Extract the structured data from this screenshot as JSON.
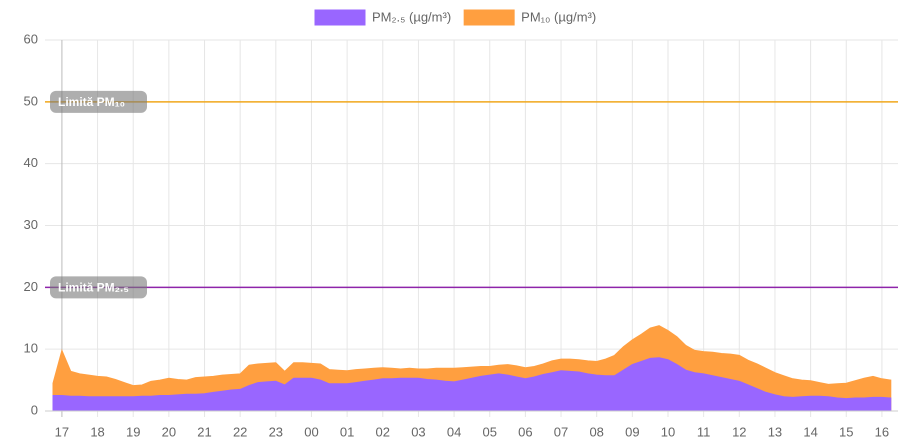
{
  "chart_data": {
    "type": "area",
    "categories": [
      null,
      "17",
      null,
      null,
      null,
      "18",
      null,
      null,
      null,
      "19",
      null,
      null,
      null,
      "20",
      null,
      null,
      null,
      "21",
      null,
      null,
      null,
      "22",
      null,
      null,
      null,
      "23",
      null,
      null,
      null,
      "00",
      null,
      null,
      null,
      "01",
      null,
      null,
      null,
      "02",
      null,
      null,
      null,
      "03",
      null,
      null,
      null,
      "04",
      null,
      null,
      null,
      "05",
      null,
      null,
      null,
      "06",
      null,
      null,
      null,
      "07",
      null,
      null,
      null,
      "08",
      null,
      null,
      null,
      "09",
      null,
      null,
      null,
      "10",
      null,
      null,
      null,
      "11",
      null,
      null,
      null,
      "12",
      null,
      null,
      null,
      "13",
      null,
      null,
      null,
      "14",
      null,
      null,
      null,
      "15",
      null,
      null,
      null,
      "16",
      null
    ],
    "series": [
      {
        "name": "PM₂.₅ (µg/m³)",
        "color": "#9966ff",
        "values": [
          2.5,
          2.5,
          2.4,
          2.4,
          2.3,
          2.3,
          2.3,
          2.3,
          2.3,
          2.3,
          2.4,
          2.4,
          2.5,
          2.5,
          2.6,
          2.7,
          2.7,
          2.8,
          3.0,
          3.2,
          3.4,
          3.5,
          4.1,
          4.6,
          4.7,
          4.8,
          4.2,
          5.3,
          5.3,
          5.3,
          5.0,
          4.4,
          4.4,
          4.4,
          4.6,
          4.8,
          5.0,
          5.2,
          5.2,
          5.3,
          5.3,
          5.3,
          5.1,
          5.0,
          4.8,
          4.7,
          5.0,
          5.3,
          5.6,
          5.8,
          6.0,
          5.8,
          5.5,
          5.2,
          5.5,
          5.9,
          6.2,
          6.5,
          6.4,
          6.3,
          6.0,
          5.8,
          5.7,
          5.7,
          6.6,
          7.5,
          8.0,
          8.5,
          8.6,
          8.3,
          7.5,
          6.6,
          6.2,
          6.0,
          5.7,
          5.4,
          5.1,
          4.8,
          4.2,
          3.6,
          3.0,
          2.6,
          2.3,
          2.2,
          2.3,
          2.4,
          2.4,
          2.3,
          2.1,
          2.0,
          2.1,
          2.1,
          2.2,
          2.2,
          2.1
        ]
      },
      {
        "name": "PM₁₀ (µg/m³)",
        "color": "#ff9f40",
        "values": [
          4.5,
          9.8,
          6.4,
          6.0,
          5.8,
          5.6,
          5.5,
          5.1,
          4.6,
          4.1,
          4.2,
          4.8,
          5.0,
          5.3,
          5.1,
          5.0,
          5.4,
          5.5,
          5.6,
          5.8,
          5.9,
          6.0,
          7.4,
          7.6,
          7.7,
          7.8,
          6.4,
          7.8,
          7.8,
          7.7,
          7.6,
          6.7,
          6.6,
          6.5,
          6.7,
          6.8,
          6.9,
          7.0,
          6.9,
          6.8,
          6.9,
          6.8,
          6.8,
          6.9,
          6.9,
          6.9,
          7.0,
          7.1,
          7.2,
          7.2,
          7.4,
          7.5,
          7.3,
          7.0,
          7.2,
          7.6,
          8.1,
          8.4,
          8.4,
          8.3,
          8.1,
          8.0,
          8.4,
          9.0,
          10.4,
          11.5,
          12.4,
          13.4,
          13.8,
          13.0,
          12.0,
          10.6,
          9.8,
          9.6,
          9.5,
          9.3,
          9.2,
          9.0,
          8.2,
          7.6,
          6.9,
          6.2,
          5.7,
          5.2,
          5.0,
          4.9,
          4.6,
          4.3,
          4.4,
          4.5,
          4.9,
          5.3,
          5.6,
          5.2,
          5.0
        ]
      }
    ],
    "ylim": [
      0,
      60
    ],
    "yticks": [
      0,
      10,
      20,
      30,
      40,
      50,
      60
    ],
    "grid": true,
    "legend": "top",
    "annotations": [
      {
        "label": "Limită PM₁₀",
        "value": 50,
        "color": "#f0a81c"
      },
      {
        "label": "Limită PM₂.₅",
        "value": 20,
        "color": "#8e24aa"
      }
    ]
  }
}
